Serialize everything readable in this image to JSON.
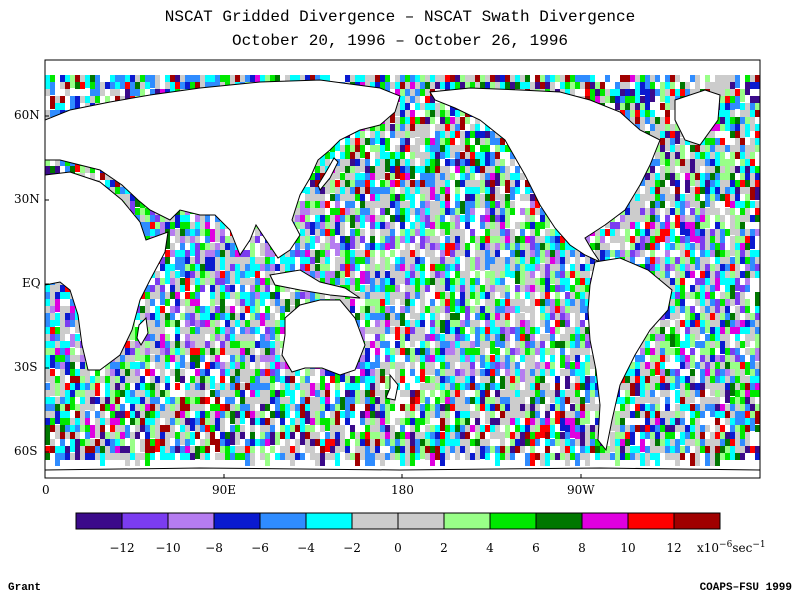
{
  "title_line1": "NSCAT Gridded Divergence – NSCAT Swath Divergence",
  "title_line2": "October 20, 1996 – October 26, 1996",
  "lat_labels": [
    "60N",
    "30N",
    "EQ",
    "30S",
    "60S"
  ],
  "lon_labels": [
    "0",
    "90E",
    "180",
    "90W"
  ],
  "colorbar": {
    "colors": [
      "#3b0a8a",
      "#7b3cf0",
      "#b57cf0",
      "#0a1ad0",
      "#2f8cff",
      "#00ffff",
      "#cccccc",
      "#cccccc",
      "#99ff88",
      "#00e800",
      "#007700",
      "#e000e0",
      "#ff0000",
      "#a00000"
    ],
    "tick_labels": [
      "−12",
      "−10",
      "−8",
      "−6",
      "−4",
      "−2",
      "0",
      "2",
      "4",
      "6",
      "8",
      "10",
      "12"
    ],
    "units_prefix": "x10",
    "units_exp1": "−6",
    "units_mid": "sec",
    "units_exp2": "−1"
  },
  "footer_left": "Grant",
  "footer_right": "COAPS–FSU 1999"
}
